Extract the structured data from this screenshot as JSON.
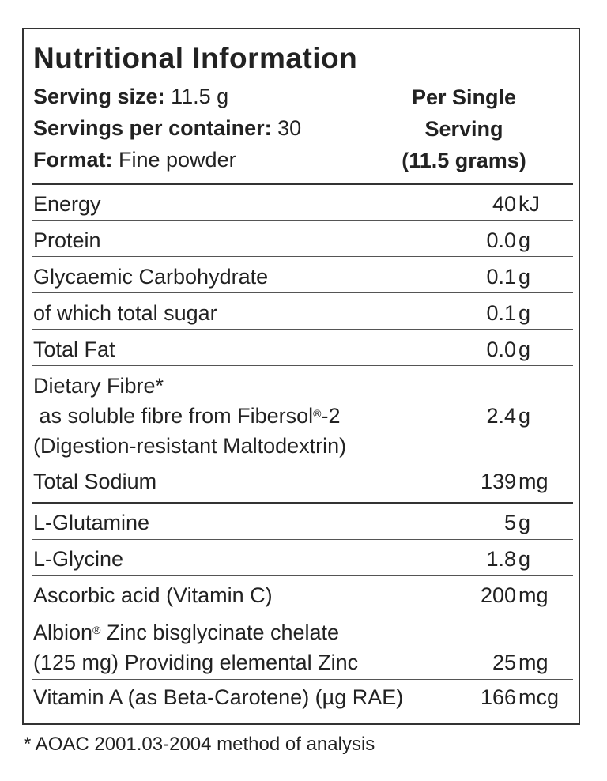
{
  "header": {
    "title": "Nutritional Information",
    "serving_size_label": "Serving size:",
    "serving_size_value": " 11.5 g",
    "servings_label": "Servings per container:",
    "servings_value": " 30",
    "format_label": "Format:",
    "format_value": " Fine powder",
    "per_serving_line1": "Per Single",
    "per_serving_line2": "Serving",
    "per_serving_line3": "(11.5 grams)"
  },
  "rows": [
    {
      "label": "Energy",
      "amount": "40",
      "unit": "kJ"
    },
    {
      "label": "Protein",
      "amount": "0.0",
      "unit": "g"
    },
    {
      "label": "Glycaemic Carbohydrate",
      "amount": "0.1",
      "unit": "g"
    },
    {
      "label": "of which total sugar",
      "amount": "0.1",
      "unit": "g"
    },
    {
      "label": "Total Fat",
      "amount": "0.0",
      "unit": "g"
    },
    {
      "label_line1": "Dietary Fibre*",
      "label_line2a": " as soluble fibre from Fibersol",
      "label_line2_mark": "®",
      "label_line2b": "-2",
      "label_line3": "(Digestion-resistant Maltodextrin)",
      "amount": "2.4",
      "unit": "g"
    },
    {
      "label": "Total Sodium",
      "amount": "139",
      "unit": "mg"
    },
    {
      "label": "L-Glutamine",
      "amount": "5",
      "unit": "g"
    },
    {
      "label": "L-Glycine",
      "amount": "1.8",
      "unit": "g"
    },
    {
      "label": "Ascorbic acid (Vitamin C)",
      "amount": "200",
      "unit": "mg"
    },
    {
      "label_line1a": "Albion",
      "label_line1_mark": "®",
      "label_line1b": " Zinc bisglycinate chelate",
      "label_line2": "(125 mg) Providing elemental Zinc",
      "amount": "25",
      "unit": "mg"
    },
    {
      "label": "Vitamin A (as Beta-Carotene) (µg RAE)",
      "amount": "166",
      "unit": "mcg"
    }
  ],
  "footnote": "* AOAC 2001.03-2004 method of analysis"
}
